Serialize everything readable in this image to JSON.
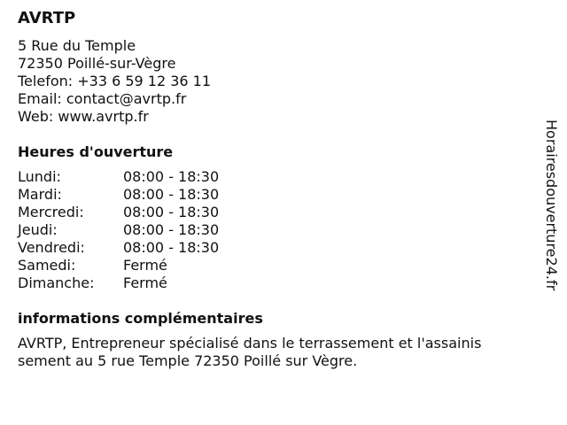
{
  "business": {
    "name": "AVRTP",
    "street": "5 Rue du Temple",
    "city": "72350 Poillé-sur-Vègre",
    "phone": "Telefon: +33 6 59 12 36 11",
    "email": "Email: contact@avrtp.fr",
    "web": "Web: www.avrtp.fr"
  },
  "hours": {
    "title": "Heures d'ouverture",
    "rows": [
      {
        "day": "Lundi:",
        "time": "08:00 - 18:30"
      },
      {
        "day": "Mardi:",
        "time": "08:00 - 18:30"
      },
      {
        "day": "Mercredi:",
        "time": "08:00 - 18:30"
      },
      {
        "day": "Jeudi:",
        "time": "08:00 - 18:30"
      },
      {
        "day": "Vendredi:",
        "time": "08:00 - 18:30"
      },
      {
        "day": "Samedi:",
        "time": "Fermé"
      },
      {
        "day": "Dimanche:",
        "time": "Fermé"
      }
    ]
  },
  "info": {
    "title": "informations complémentaires",
    "text": "AVRTP, Entrepreneur spécialisé dans le terrassement et l'assainis sement au 5 rue Temple 72350 Poillé sur Vègre."
  },
  "watermark": "Horairesdouverture24.fr"
}
